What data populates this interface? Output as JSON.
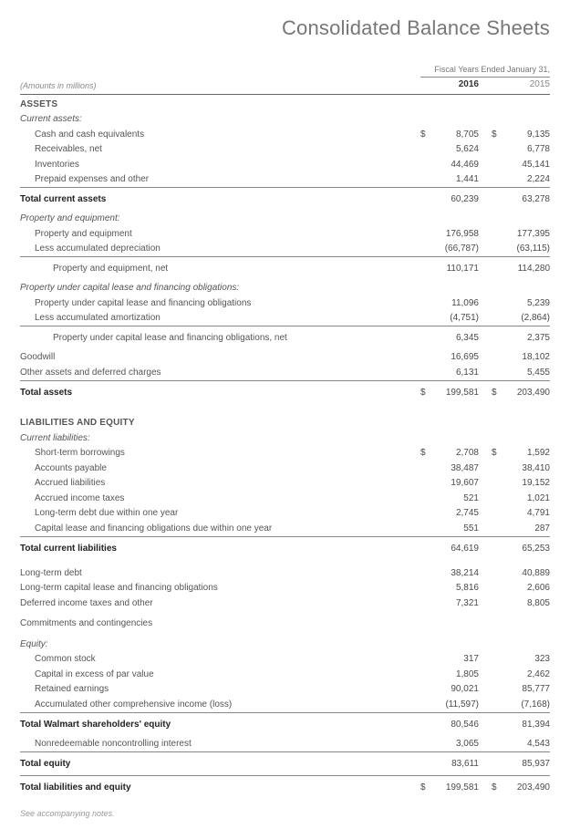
{
  "title": "Consolidated Balance Sheets",
  "period_header": "Fiscal Years Ended January 31,",
  "amounts_note": "(Amounts in millions)",
  "year_current": "2016",
  "year_prior": "2015",
  "footnote": "See accompanying notes.",
  "rows": [
    {
      "type": "section",
      "label": "ASSETS"
    },
    {
      "type": "subhead",
      "label": "Current assets:"
    },
    {
      "type": "line",
      "indent": 1,
      "label": "Cash and cash equivalents",
      "cur_sym": "$",
      "cur": "8,705",
      "prv_sym": "$",
      "prv": "9,135"
    },
    {
      "type": "line",
      "indent": 1,
      "label": "Receivables, net",
      "cur": "5,624",
      "prv": "6,778"
    },
    {
      "type": "line",
      "indent": 1,
      "label": "Inventories",
      "cur": "44,469",
      "prv": "45,141"
    },
    {
      "type": "line",
      "indent": 1,
      "label": "Prepaid expenses and other",
      "cur": "1,441",
      "prv": "2,224"
    },
    {
      "type": "total",
      "label": "Total current assets",
      "cur": "60,239",
      "prv": "63,278",
      "rule": true,
      "pad": true
    },
    {
      "type": "subhead",
      "label": "Property and equipment:"
    },
    {
      "type": "line",
      "indent": 1,
      "label": "Property and equipment",
      "cur": "176,958",
      "prv": "177,395"
    },
    {
      "type": "line",
      "indent": 1,
      "label": "Less accumulated depreciation",
      "cur": "(66,787)",
      "prv": "(63,115)"
    },
    {
      "type": "line",
      "indent": 2,
      "label": "Property and equipment, net",
      "cur": "110,171",
      "prv": "114,280",
      "rule": true,
      "pad": true
    },
    {
      "type": "subhead",
      "label": "Property under capital lease and financing obligations:"
    },
    {
      "type": "line",
      "indent": 1,
      "label": "Property under capital lease and financing obligations",
      "cur": "11,096",
      "prv": "5,239"
    },
    {
      "type": "line",
      "indent": 1,
      "label": "Less accumulated amortization",
      "cur": "(4,751)",
      "prv": "(2,864)"
    },
    {
      "type": "line",
      "indent": 2,
      "label": "Property under capital lease and financing obligations, net",
      "cur": "6,345",
      "prv": "2,375",
      "rule": true,
      "pad": true
    },
    {
      "type": "line",
      "indent": 0,
      "label": "Goodwill",
      "cur": "16,695",
      "prv": "18,102"
    },
    {
      "type": "line",
      "indent": 0,
      "label": "Other assets and deferred charges",
      "cur": "6,131",
      "prv": "5,455"
    },
    {
      "type": "total",
      "label": "Total assets",
      "cur_sym": "$",
      "cur": "199,581",
      "prv_sym": "$",
      "prv": "203,490",
      "rule": true,
      "pad": true
    },
    {
      "type": "spacer"
    },
    {
      "type": "section",
      "label": "LIABILITIES AND EQUITY"
    },
    {
      "type": "subhead",
      "label": "Current liabilities:"
    },
    {
      "type": "line",
      "indent": 1,
      "label": "Short-term borrowings",
      "cur_sym": "$",
      "cur": "2,708",
      "prv_sym": "$",
      "prv": "1,592"
    },
    {
      "type": "line",
      "indent": 1,
      "label": "Accounts payable",
      "cur": "38,487",
      "prv": "38,410"
    },
    {
      "type": "line",
      "indent": 1,
      "label": "Accrued liabilities",
      "cur": "19,607",
      "prv": "19,152"
    },
    {
      "type": "line",
      "indent": 1,
      "label": "Accrued income taxes",
      "cur": "521",
      "prv": "1,021"
    },
    {
      "type": "line",
      "indent": 1,
      "label": "Long-term debt due within one year",
      "cur": "2,745",
      "prv": "4,791"
    },
    {
      "type": "line",
      "indent": 1,
      "label": "Capital lease and financing obligations due within one year",
      "cur": "551",
      "prv": "287"
    },
    {
      "type": "total",
      "label": "Total current liabilities",
      "cur": "64,619",
      "prv": "65,253",
      "rule": true,
      "pad": true
    },
    {
      "type": "spacer-sm"
    },
    {
      "type": "line",
      "indent": 0,
      "label": "Long-term debt",
      "cur": "38,214",
      "prv": "40,889"
    },
    {
      "type": "line",
      "indent": 0,
      "label": "Long-term capital lease and financing obligations",
      "cur": "5,816",
      "prv": "2,606"
    },
    {
      "type": "line",
      "indent": 0,
      "label": "Deferred income taxes and other",
      "cur": "7,321",
      "prv": "8,805"
    },
    {
      "type": "spacer-sm"
    },
    {
      "type": "line",
      "indent": 0,
      "label": "Commitments and contingencies",
      "cur": "",
      "prv": ""
    },
    {
      "type": "spacer-sm"
    },
    {
      "type": "subhead",
      "label": "Equity:"
    },
    {
      "type": "line",
      "indent": 1,
      "label": "Common stock",
      "cur": "317",
      "prv": "323"
    },
    {
      "type": "line",
      "indent": 1,
      "label": "Capital in excess of par value",
      "cur": "1,805",
      "prv": "2,462"
    },
    {
      "type": "line",
      "indent": 1,
      "label": "Retained earnings",
      "cur": "90,021",
      "prv": "85,777"
    },
    {
      "type": "line",
      "indent": 1,
      "label": "Accumulated other comprehensive income (loss)",
      "cur": "(11,597)",
      "prv": "(7,168)"
    },
    {
      "type": "total",
      "label": "Total Walmart shareholders' equity",
      "cur": "80,546",
      "prv": "81,394",
      "rule": true,
      "pad": true
    },
    {
      "type": "line",
      "indent": 1,
      "label": "Nonredeemable noncontrolling interest",
      "cur": "3,065",
      "prv": "4,543"
    },
    {
      "type": "total",
      "label": "Total equity",
      "cur": "83,611",
      "prv": "85,937",
      "rule": true,
      "pad": true
    },
    {
      "type": "total",
      "label": "Total liabilities and equity",
      "cur_sym": "$",
      "cur": "199,581",
      "prv_sym": "$",
      "prv": "203,490",
      "rule": true,
      "pad": true
    }
  ]
}
